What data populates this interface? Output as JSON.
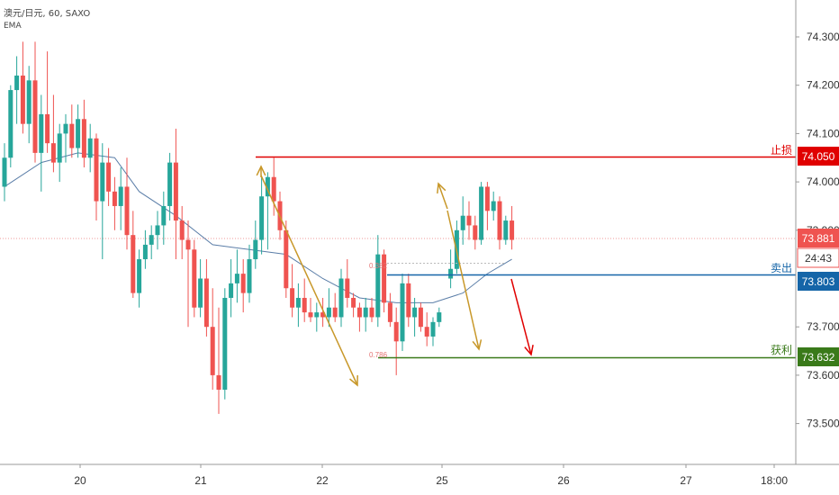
{
  "header": {
    "symbol": "澳元/日元, 60, SAXO",
    "indicator": "EMA"
  },
  "price_axis": {
    "ticks": [
      "74.300",
      "74.200",
      "74.100",
      "74.000",
      "73.900",
      "73.700",
      "73.600",
      "73.500"
    ]
  },
  "time_axis": {
    "ticks": [
      "20",
      "21",
      "22",
      "25",
      "26",
      "27",
      "18:00"
    ]
  },
  "levels": [
    {
      "name": "stop-loss",
      "label": "止损",
      "value": "74.050",
      "color": "#e00000"
    },
    {
      "name": "sell",
      "label": "卖出",
      "value": "73.803",
      "color": "#1565a8"
    },
    {
      "name": "take-profit",
      "label": "获利",
      "value": "73.632",
      "color": "#3a7a1a"
    }
  ],
  "current_price": {
    "value": "73.881",
    "countdown": "24:43",
    "color": "#ef5350"
  },
  "fib_labels": [
    "0.382",
    "0.786"
  ],
  "colors": {
    "up": "#26a69a",
    "down": "#ef5350",
    "ema": "#5b7ea8",
    "arrow": "#c8982a",
    "target_arrow": "#e00000"
  },
  "chart_data": {
    "type": "candlestick",
    "title": "澳元/日元, 60, SAXO",
    "ylim": [
      73.45,
      74.37
    ],
    "x_ticks": [
      "20",
      "21",
      "22",
      "25",
      "26",
      "27",
      "18:00"
    ],
    "ohlc": [
      [
        73.99,
        74.08,
        73.96,
        74.05
      ],
      [
        74.05,
        74.2,
        74.03,
        74.19
      ],
      [
        74.19,
        74.26,
        74.12,
        74.22
      ],
      [
        74.22,
        74.29,
        74.1,
        74.12
      ],
      [
        74.12,
        74.24,
        74.08,
        74.21
      ],
      [
        74.21,
        74.29,
        74.04,
        74.06
      ],
      [
        74.06,
        74.18,
        73.98,
        74.14
      ],
      [
        74.14,
        74.27,
        74.06,
        74.08
      ],
      [
        74.08,
        74.18,
        74.02,
        74.04
      ],
      [
        74.04,
        74.12,
        74.0,
        74.1
      ],
      [
        74.1,
        74.14,
        74.04,
        74.12
      ],
      [
        74.12,
        74.16,
        74.05,
        74.07
      ],
      [
        74.07,
        74.16,
        74.05,
        74.13
      ],
      [
        74.13,
        74.17,
        74.03,
        74.05
      ],
      [
        74.05,
        74.12,
        74.02,
        74.09
      ],
      [
        74.09,
        74.1,
        73.92,
        73.96
      ],
      [
        73.96,
        74.08,
        73.84,
        74.04
      ],
      [
        74.04,
        74.07,
        73.95,
        73.98
      ],
      [
        73.98,
        74.01,
        73.9,
        73.95
      ],
      [
        73.95,
        74.03,
        73.9,
        73.99
      ],
      [
        73.99,
        74.05,
        73.86,
        73.89
      ],
      [
        73.89,
        73.94,
        73.76,
        73.77
      ],
      [
        73.77,
        73.86,
        73.74,
        73.84
      ],
      [
        73.84,
        73.9,
        73.82,
        73.87
      ],
      [
        73.87,
        73.91,
        73.84,
        73.89
      ],
      [
        73.89,
        73.94,
        73.86,
        73.91
      ],
      [
        73.91,
        73.98,
        73.87,
        73.95
      ],
      [
        73.95,
        74.06,
        73.92,
        74.04
      ],
      [
        74.04,
        74.11,
        73.84,
        73.92
      ],
      [
        73.92,
        73.95,
        73.84,
        73.88
      ],
      [
        73.88,
        73.92,
        73.7,
        73.86
      ],
      [
        73.86,
        73.88,
        73.72,
        73.74
      ],
      [
        73.74,
        73.84,
        73.72,
        73.8
      ],
      [
        73.8,
        73.84,
        73.68,
        73.7
      ],
      [
        73.7,
        73.78,
        73.57,
        73.6
      ],
      [
        73.6,
        73.74,
        73.52,
        73.57
      ],
      [
        73.57,
        73.78,
        73.55,
        73.76
      ],
      [
        73.76,
        73.84,
        73.72,
        73.79
      ],
      [
        73.79,
        73.86,
        73.75,
        73.81
      ],
      [
        73.81,
        73.84,
        73.73,
        73.77
      ],
      [
        73.77,
        73.87,
        73.75,
        73.84
      ],
      [
        73.84,
        73.92,
        73.82,
        73.88
      ],
      [
        73.88,
        74.01,
        73.85,
        73.97
      ],
      [
        73.97,
        74.02,
        73.86,
        74.01
      ],
      [
        74.01,
        74.05,
        73.93,
        73.96
      ],
      [
        73.96,
        73.98,
        73.88,
        73.9
      ],
      [
        73.9,
        73.92,
        73.76,
        73.78
      ],
      [
        73.78,
        73.83,
        73.72,
        73.74
      ],
      [
        73.74,
        73.79,
        73.7,
        73.76
      ],
      [
        73.76,
        73.8,
        73.71,
        73.73
      ],
      [
        73.73,
        73.76,
        73.71,
        73.72
      ],
      [
        73.72,
        73.75,
        73.69,
        73.73
      ],
      [
        73.73,
        73.76,
        73.7,
        73.72
      ],
      [
        73.72,
        73.78,
        73.7,
        73.74
      ],
      [
        73.74,
        73.77,
        73.71,
        73.72
      ],
      [
        73.72,
        73.82,
        73.7,
        73.8
      ],
      [
        73.8,
        73.84,
        73.74,
        73.76
      ],
      [
        73.76,
        73.77,
        73.72,
        73.74
      ],
      [
        73.74,
        73.75,
        73.69,
        73.72
      ],
      [
        73.72,
        73.76,
        73.69,
        73.74
      ],
      [
        73.74,
        73.76,
        73.71,
        73.72
      ],
      [
        73.72,
        73.89,
        73.7,
        73.85
      ],
      [
        73.85,
        73.86,
        73.73,
        73.75
      ],
      [
        73.75,
        73.77,
        73.7,
        73.71
      ],
      [
        73.71,
        73.74,
        73.6,
        73.67
      ],
      [
        73.67,
        73.81,
        73.65,
        73.79
      ],
      [
        73.79,
        73.81,
        73.7,
        73.72
      ],
      [
        73.72,
        73.76,
        73.68,
        73.74
      ],
      [
        73.74,
        73.75,
        73.69,
        73.7
      ],
      [
        73.7,
        73.73,
        73.66,
        73.68
      ],
      [
        73.68,
        73.72,
        73.66,
        73.71
      ],
      [
        73.71,
        73.74,
        73.7,
        73.73
      ],
      [
        73.8,
        73.86,
        73.78,
        73.82
      ],
      [
        73.82,
        73.92,
        73.81,
        73.9
      ],
      [
        73.9,
        73.97,
        73.87,
        73.93
      ],
      [
        73.93,
        73.96,
        73.88,
        73.91
      ],
      [
        73.91,
        73.93,
        73.86,
        73.88
      ],
      [
        73.88,
        74.0,
        73.87,
        73.99
      ],
      [
        73.99,
        74.0,
        73.9,
        73.94
      ],
      [
        73.94,
        73.98,
        73.92,
        73.96
      ],
      [
        73.96,
        73.97,
        73.86,
        73.88
      ],
      [
        73.88,
        73.93,
        73.87,
        73.92
      ],
      [
        73.92,
        73.95,
        73.86,
        73.88
      ]
    ],
    "ema": [
      [
        0,
        73.99
      ],
      [
        6,
        74.04
      ],
      [
        12,
        74.06
      ],
      [
        18,
        74.05
      ],
      [
        22,
        73.98
      ],
      [
        28,
        73.93
      ],
      [
        34,
        73.87
      ],
      [
        40,
        73.86
      ],
      [
        46,
        73.85
      ],
      [
        52,
        73.8
      ],
      [
        58,
        73.76
      ],
      [
        64,
        73.75
      ],
      [
        70,
        73.75
      ],
      [
        74,
        73.77
      ],
      [
        78,
        73.81
      ],
      [
        82,
        73.84
      ]
    ]
  }
}
